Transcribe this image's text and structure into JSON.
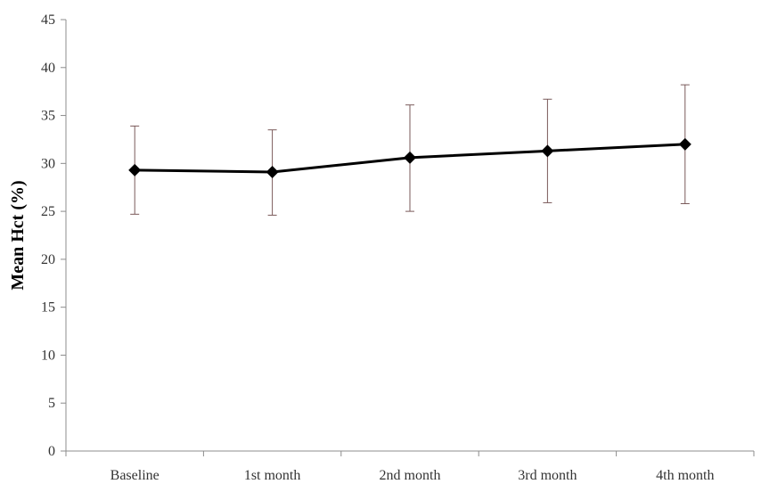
{
  "chart_data": {
    "type": "line",
    "title": "",
    "xlabel": "",
    "ylabel": "Mean Hct (%)",
    "categories": [
      "Baseline",
      "1st month",
      "2nd month",
      "3rd month",
      "4th month"
    ],
    "series": [
      {
        "values": [
          29.3,
          29.1,
          30.6,
          31.3,
          32.0
        ],
        "error_upper": [
          33.9,
          33.5,
          36.1,
          36.7,
          38.2
        ],
        "error_lower": [
          24.7,
          24.6,
          25.0,
          25.9,
          25.8
        ],
        "marker": "diamond",
        "color": "#000000"
      }
    ],
    "ylim": [
      0,
      45
    ],
    "yticks": [
      "0",
      "5",
      "10",
      "15",
      "20",
      "25",
      "30",
      "35",
      "40",
      "45"
    ],
    "grid": false,
    "legend": "none",
    "error_bar_color": "#7a5a5a"
  }
}
